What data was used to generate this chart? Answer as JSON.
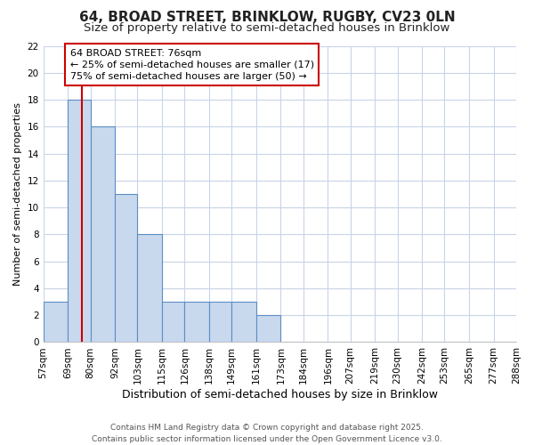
{
  "title": "64, BROAD STREET, BRINKLOW, RUGBY, CV23 0LN",
  "subtitle": "Size of property relative to semi-detached houses in Brinklow",
  "xlabel": "Distribution of semi-detached houses by size in Brinklow",
  "ylabel": "Number of semi-detached properties",
  "bar_color": "#c8d9ee",
  "bar_edge_color": "#5b8ec4",
  "bin_edges": [
    57,
    69,
    80,
    92,
    103,
    115,
    126,
    138,
    149,
    161,
    173,
    184,
    196,
    207,
    219,
    230,
    242,
    253,
    265,
    277,
    288
  ],
  "counts": [
    3,
    18,
    16,
    11,
    8,
    3,
    3,
    3,
    3,
    2,
    0,
    0,
    0,
    0,
    0,
    0,
    0,
    0,
    0,
    0
  ],
  "x_tick_labels": [
    "57sqm",
    "69sqm",
    "80sqm",
    "92sqm",
    "103sqm",
    "115sqm",
    "126sqm",
    "138sqm",
    "149sqm",
    "161sqm",
    "173sqm",
    "184sqm",
    "196sqm",
    "207sqm",
    "219sqm",
    "230sqm",
    "242sqm",
    "253sqm",
    "265sqm",
    "277sqm",
    "288sqm"
  ],
  "ylim": [
    0,
    22
  ],
  "yticks": [
    0,
    2,
    4,
    6,
    8,
    10,
    12,
    14,
    16,
    18,
    20,
    22
  ],
  "property_size": 76,
  "red_line_color": "#cc0000",
  "annotation_line1": "64 BROAD STREET: 76sqm",
  "annotation_line2": "← 25% of semi-detached houses are smaller (17)",
  "annotation_line3": "75% of semi-detached houses are larger (50) →",
  "annotation_box_color": "#cc0000",
  "footer_line1": "Contains HM Land Registry data © Crown copyright and database right 2025.",
  "footer_line2": "Contains public sector information licensed under the Open Government Licence v3.0.",
  "figure_bg": "#ffffff",
  "axes_bg": "#ffffff",
  "grid_color": "#c8d4e8",
  "title_fontsize": 11,
  "subtitle_fontsize": 9.5,
  "tick_fontsize": 7.5,
  "ylabel_fontsize": 8,
  "xlabel_fontsize": 9,
  "footer_fontsize": 6.5,
  "annotation_fontsize": 8
}
